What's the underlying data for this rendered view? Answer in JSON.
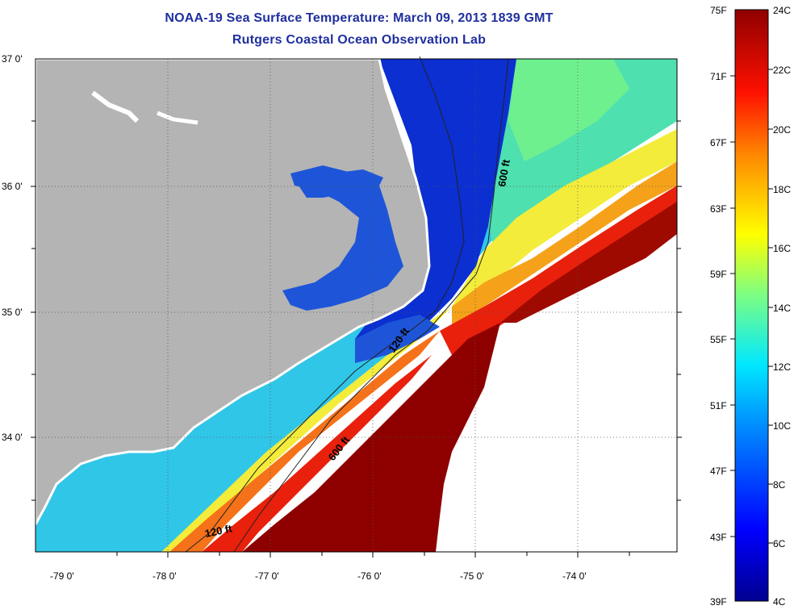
{
  "header": {
    "title_line1": "NOAA-19 Sea Surface Temperature:  March 09, 2013 1839 GMT",
    "title_line2": "Rutgers Coastal Ocean Observation Lab"
  },
  "map": {
    "lat_labels": [
      "37 0'",
      "36 0'",
      "35 0'",
      "34 0'"
    ],
    "lon_labels": [
      "-79 0'",
      "-78 0'",
      "-77 0'",
      "-76 0'",
      "-75 0'",
      "-74 0'"
    ],
    "contours": [
      "600 ft",
      "120 ft",
      "600 ft",
      "120 ft"
    ],
    "colors": {
      "land": "#b4b4b4",
      "cold": "#0a2fcf",
      "cool": "#2fc8ef",
      "mid": "#e8f04a",
      "warm": "#f07a10",
      "hot": "#8e0000",
      "no_data": "#ffffff"
    }
  },
  "colorbar": {
    "fahrenheit_labels": [
      "75F",
      "71F",
      "67F",
      "63F",
      "59F",
      "55F",
      "51F",
      "47F",
      "43F",
      "39F"
    ],
    "celsius_labels": [
      "24C",
      "22C",
      "20C",
      "18C",
      "16C",
      "14C",
      "12C",
      "10C",
      "8C",
      "6C",
      "4C"
    ]
  }
}
